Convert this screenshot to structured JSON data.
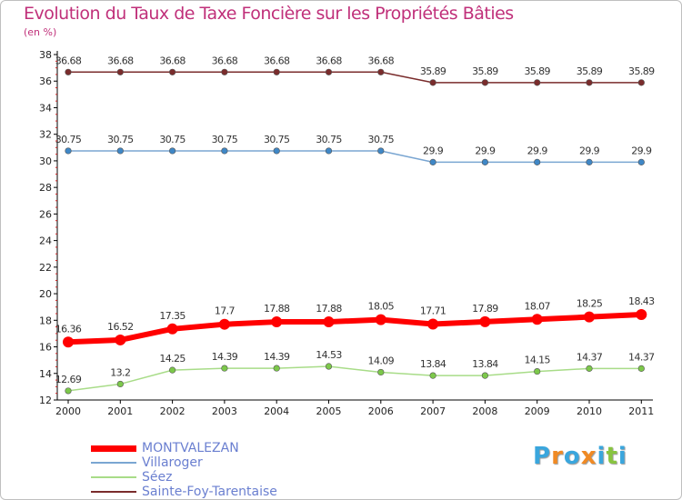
{
  "chart_data": {
    "type": "line",
    "title": "Evolution du Taux de Taxe Foncière sur les Propriétés Bâties",
    "subtitle": "(en %)",
    "categories": [
      "2000",
      "2001",
      "2002",
      "2003",
      "2004",
      "2005",
      "2006",
      "2007",
      "2008",
      "2009",
      "2010",
      "2011"
    ],
    "yticks": [
      "12",
      "14",
      "16",
      "18",
      "20",
      "22",
      "24",
      "26",
      "28",
      "30",
      "32",
      "34",
      "36",
      "38"
    ],
    "ylim": [
      12,
      38
    ],
    "grid": false,
    "legend_position": "bottom-left",
    "series": [
      {
        "name": "MONTVALEZAN",
        "color": "#ff0000",
        "marker_color": "#ff0000",
        "values": [
          16.36,
          16.52,
          17.35,
          17.7,
          17.88,
          17.88,
          18.05,
          17.71,
          17.89,
          18.07,
          18.25,
          18.43
        ],
        "labels": [
          "16.36",
          "16.52",
          "17.35",
          "17.7",
          "17.88",
          "17.88",
          "18.05",
          "17.71",
          "17.89",
          "18.07",
          "18.25",
          "18.43"
        ]
      },
      {
        "name": "Villaroger",
        "color": "#7aa6d2",
        "marker_color": "#3f87c6",
        "values": [
          30.75,
          30.75,
          30.75,
          30.75,
          30.75,
          30.75,
          30.75,
          29.9,
          29.9,
          29.9,
          29.9,
          29.9
        ],
        "labels": [
          "30.75",
          "30.75",
          "30.75",
          "30.75",
          "30.75",
          "30.75",
          "30.75",
          "29.9",
          "29.9",
          "29.9",
          "29.9",
          "29.9"
        ]
      },
      {
        "name": "Séez",
        "color": "#a8dc88",
        "marker_color": "#7cc84a",
        "values": [
          12.69,
          13.2,
          14.25,
          14.39,
          14.39,
          14.53,
          14.09,
          13.84,
          13.84,
          14.15,
          14.37,
          14.37
        ],
        "labels": [
          "12.69",
          "13.2",
          "14.25",
          "14.39",
          "14.39",
          "14.53",
          "14.09",
          "13.84",
          "13.84",
          "14.15",
          "14.37",
          "14.37"
        ]
      },
      {
        "name": "Sainte-Foy-Tarentaise",
        "color": "#7a2c2c",
        "marker_color": "#7a2c2c",
        "values": [
          36.68,
          36.68,
          36.68,
          36.68,
          36.68,
          36.68,
          36.68,
          35.89,
          35.89,
          35.89,
          35.89,
          35.89
        ],
        "labels": [
          "36.68",
          "36.68",
          "36.68",
          "36.68",
          "36.68",
          "36.68",
          "36.68",
          "35.89",
          "35.89",
          "35.89",
          "35.89",
          "35.89"
        ]
      }
    ]
  },
  "brand": {
    "name": "Proxiti",
    "letters": [
      "P",
      "r",
      "o",
      "x",
      "i",
      "t",
      "i"
    ],
    "colors": [
      "#3aa6dd",
      "#f08a24",
      "#3aa6dd",
      "#f08a24",
      "#3aa6dd",
      "#88c440",
      "#3aa6dd"
    ]
  }
}
